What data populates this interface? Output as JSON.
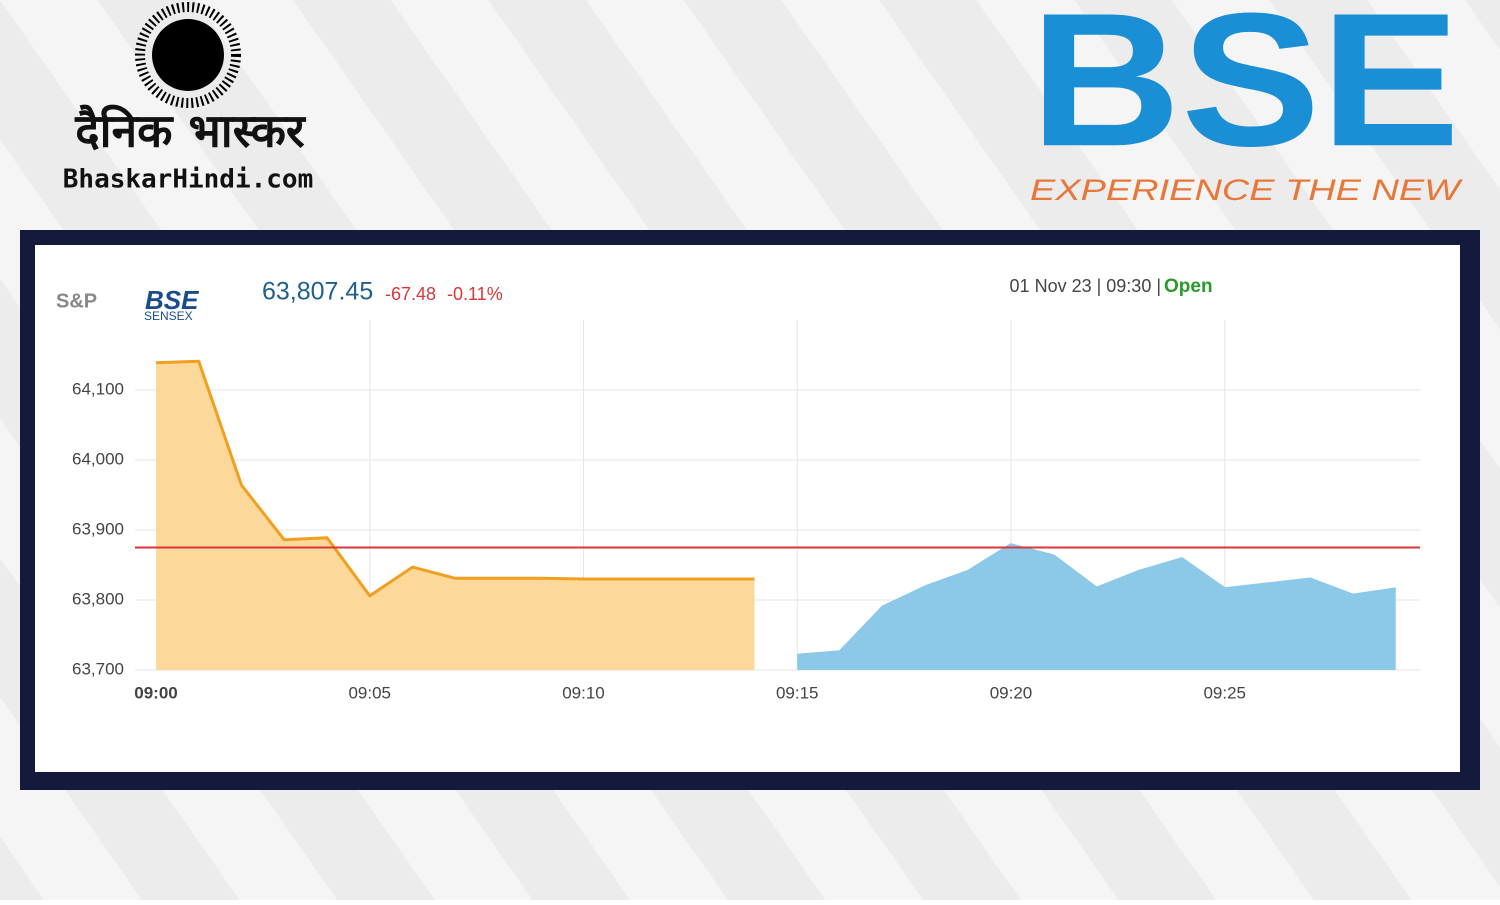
{
  "branding": {
    "left_title": "दैनिक भास्कर",
    "left_site": "BhaskarHindi.com",
    "right_title": "BSE",
    "right_tagline": "EXPERIENCE THE NEW"
  },
  "chart_data": {
    "type": "area",
    "index_logo": {
      "prefix": "S&P",
      "name": "BSE",
      "sub": "SENSEX"
    },
    "price": "63,807.45",
    "change": "-67.48",
    "change_pct": "-0.11%",
    "timestamp": "01 Nov 23 | 09:30 |",
    "status": "Open",
    "categories": [
      "09:00",
      null,
      null,
      null,
      null,
      "09:05",
      null,
      null,
      null,
      null,
      "09:10",
      null,
      null,
      null,
      null,
      "09:15",
      null,
      null,
      null,
      null,
      "09:20",
      null,
      null,
      null,
      null,
      "09:25",
      null,
      null,
      null,
      null
    ],
    "series": [
      {
        "color": "#f0a020",
        "fill": "#fcd89a",
        "values": [
          64139,
          64141,
          63964,
          63886,
          63889,
          63806,
          63847,
          63831,
          63831,
          63831,
          63830,
          63830,
          63830,
          63830,
          63830,
          null,
          null,
          null,
          null,
          null,
          null,
          null,
          null,
          null,
          null,
          null,
          null,
          null,
          null,
          null
        ]
      },
      {
        "color": "#8cc8e8",
        "fill": "#8cc8e8",
        "values": [
          null,
          null,
          null,
          null,
          null,
          null,
          null,
          null,
          null,
          null,
          null,
          null,
          null,
          null,
          null,
          63721,
          63726,
          63790,
          63819,
          63841,
          63879,
          63863,
          63817,
          63841,
          63859,
          63816,
          63823,
          63830,
          63807,
          63816
        ]
      }
    ],
    "reference_line": 63874.93,
    "reference_color": "#d9373a",
    "ylim": [
      63700,
      64200
    ],
    "yticks": [
      {
        "value": 63700,
        "label": "63,700"
      },
      {
        "value": 63800,
        "label": "63,800"
      },
      {
        "value": 63900,
        "label": "63,900"
      },
      {
        "value": 64000,
        "label": "64,000"
      },
      {
        "value": 64100,
        "label": "64,100"
      }
    ],
    "grid": true
  }
}
